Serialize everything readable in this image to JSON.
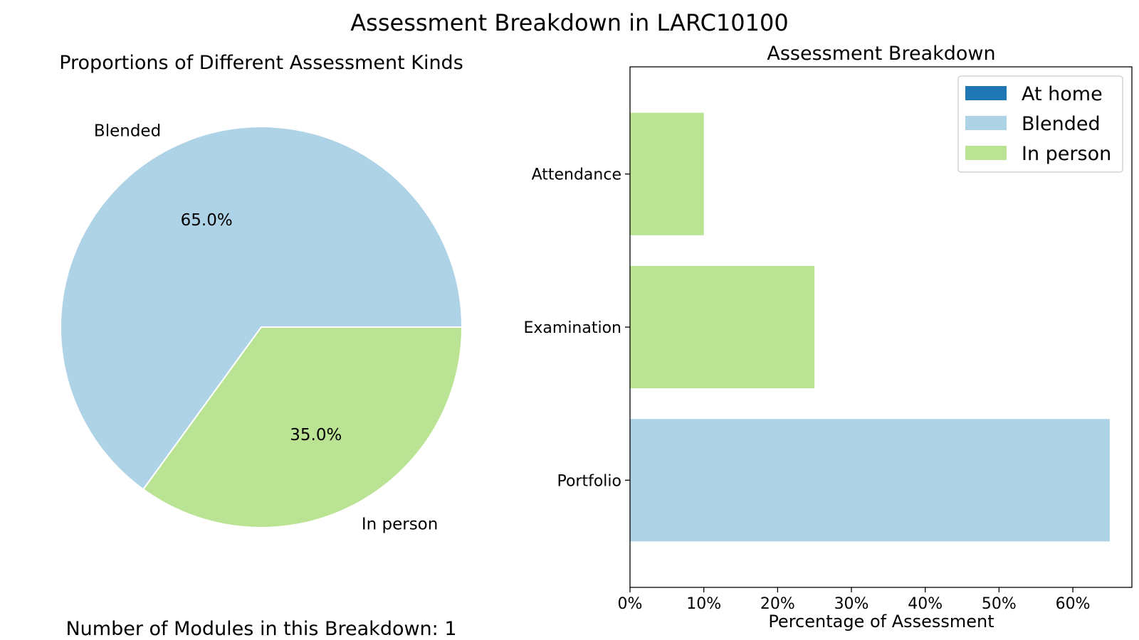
{
  "figure": {
    "title": "Assessment Breakdown in LARC10100",
    "footer": "Number of Modules in this Breakdown: 1"
  },
  "colors": {
    "at_home": "#1f78b4",
    "blended": "#afd3e6",
    "in_person": "#bbe394"
  },
  "chart_data": [
    {
      "type": "pie",
      "title": "Proportions of Different Assessment Kinds",
      "labels": [
        "Blended",
        "In person"
      ],
      "values": [
        65.0,
        35.0
      ],
      "autopct_labels": [
        "65.0%",
        "35.0%"
      ],
      "colors": [
        "#afd3e6",
        "#bbe394"
      ],
      "start_angle_deg": 0,
      "direction": "counterclockwise"
    },
    {
      "type": "bar",
      "orientation": "horizontal",
      "stacked": true,
      "title": "Assessment Breakdown",
      "xlabel": "Percentage of Assessment",
      "ylabel": "",
      "categories": [
        "Portfolio",
        "Examination",
        "Attendance"
      ],
      "xlim": [
        0,
        68
      ],
      "xticks": [
        0,
        10,
        20,
        30,
        40,
        50,
        60
      ],
      "xtick_labels": [
        "0%",
        "10%",
        "20%",
        "30%",
        "40%",
        "50%",
        "60%"
      ],
      "series": [
        {
          "name": "At home",
          "color": "#1f78b4",
          "values": [
            0,
            0,
            0
          ]
        },
        {
          "name": "Blended",
          "color": "#afd3e6",
          "values": [
            65,
            0,
            0
          ]
        },
        {
          "name": "In person",
          "color": "#bbe394",
          "values": [
            0,
            25,
            10
          ]
        }
      ],
      "legend": {
        "position": "upper right",
        "entries": [
          "At home",
          "Blended",
          "In person"
        ]
      },
      "grid": false
    }
  ]
}
